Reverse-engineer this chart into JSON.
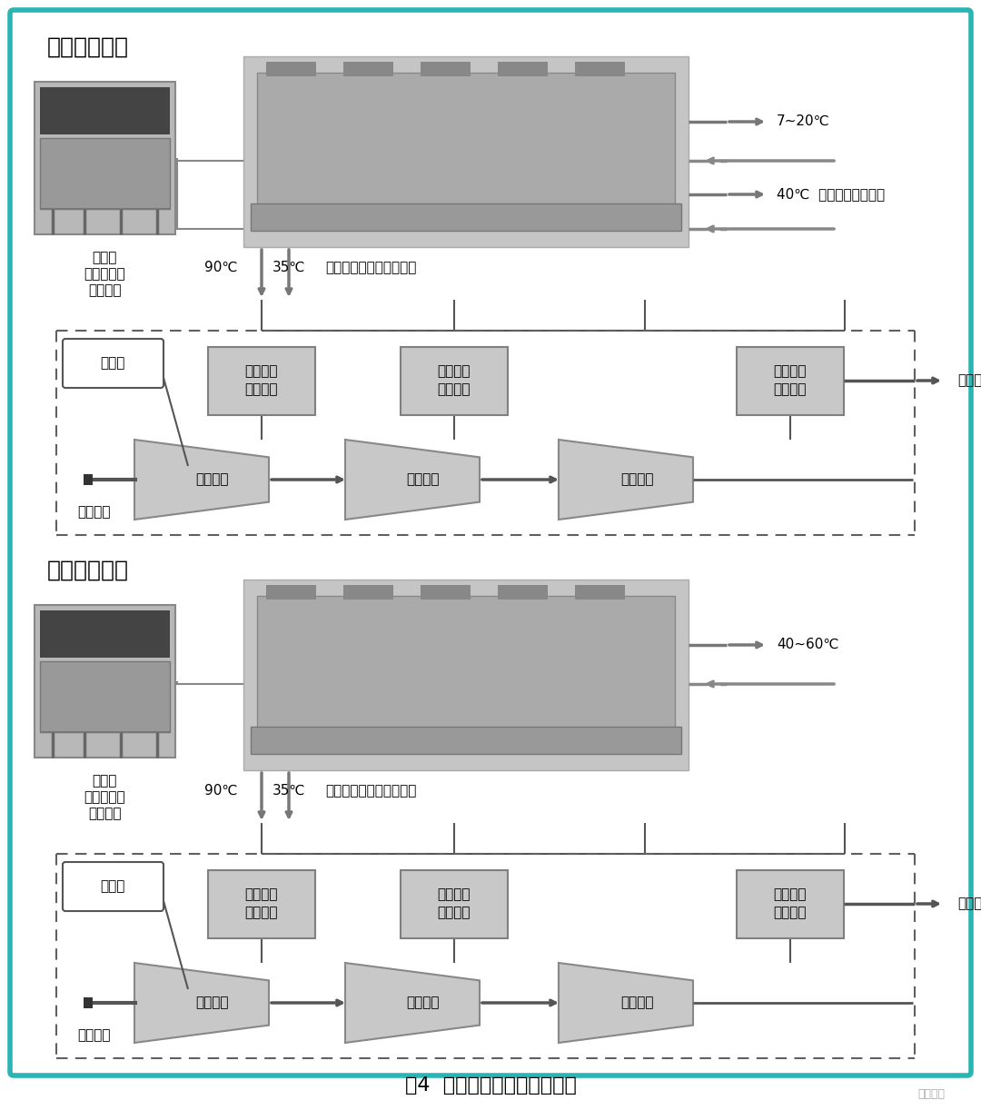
{
  "bg_color": "#ffffff",
  "teal_border": "#2ab5b5",
  "title": "图4  离心空压机节能改造原理",
  "section1_title": "夏季制冷工况",
  "section2_title": "冬季制冷工况",
  "temp_90": "90℃",
  "temp_35": "35℃",
  "machine_label": "空压机余热回收专用机组",
  "temp_7_20": "7~20℃",
  "temp_40": "40℃  生活热水或冷却水",
  "temp_40_60": "40~60℃",
  "cooling_tower_label1": "冷却塔",
  "cooling_tower_label2": "原冷却塔夏",
  "cooling_tower_label3": "季制冷用",
  "compressor_label": "空压机",
  "air_in_label": "空气吸入",
  "air_out_label": "压缩空气出",
  "heat1_label1": "一级余热",
  "heat1_label2": "取热装置",
  "heat2_label1": "二级余热",
  "heat2_label2": "取热装置",
  "heat3_label1": "后冷余热",
  "heat3_label2": "取热装置",
  "comp1_label": "一级压缩",
  "comp2_label": "二级压缩",
  "comp3_label": "三级压缩",
  "box_fill": "#c8c8c8",
  "box_edge": "#808080",
  "dashed_color": "#606060"
}
